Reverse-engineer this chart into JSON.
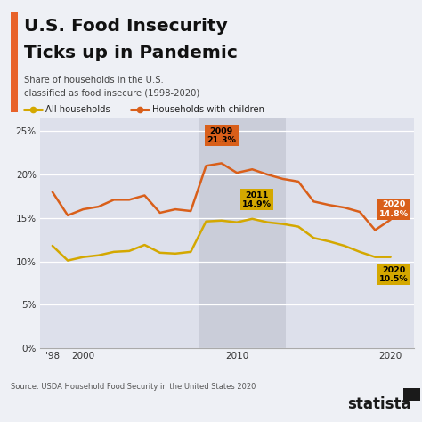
{
  "title_line1": "U.S. Food Insecurity",
  "title_line2": "Ticks up in Pandemic",
  "subtitle": "Share of households in the U.S.\nclassified as food insecure (1998-2020)",
  "source": "Source: USDA Household Food Security in the United States 2020",
  "bg_color": "#eef0f5",
  "chart_bg_color": "#eaecf4",
  "chart_bg_dark": "#d8dbe8",
  "title_bar_color": "#e8622a",
  "all_color": "#d4a800",
  "children_color": "#d95f1a",
  "years": [
    1998,
    1999,
    2000,
    2001,
    2002,
    2003,
    2004,
    2005,
    2006,
    2007,
    2008,
    2009,
    2010,
    2011,
    2012,
    2013,
    2014,
    2015,
    2016,
    2017,
    2018,
    2019,
    2020
  ],
  "all_households": [
    11.8,
    10.1,
    10.5,
    10.7,
    11.1,
    11.2,
    11.9,
    11.0,
    10.9,
    11.1,
    14.6,
    14.7,
    14.5,
    14.9,
    14.5,
    14.3,
    14.0,
    12.7,
    12.3,
    11.8,
    11.1,
    10.5,
    10.5
  ],
  "with_children": [
    18.0,
    15.3,
    16.0,
    16.3,
    17.1,
    17.1,
    17.6,
    15.6,
    16.0,
    15.8,
    21.0,
    21.3,
    20.2,
    20.6,
    20.0,
    19.5,
    19.2,
    16.9,
    16.5,
    16.2,
    15.7,
    13.6,
    14.8
  ],
  "ylim": [
    0,
    26.5
  ],
  "xlim": [
    1997.2,
    2021.5
  ],
  "yticks": [
    0,
    5,
    10,
    15,
    20,
    25
  ],
  "xticks": [
    1998,
    2000,
    2005,
    2010,
    2015,
    2020
  ],
  "xticklabels": [
    "'98",
    "2000",
    "",
    "2010",
    "",
    "2020"
  ]
}
